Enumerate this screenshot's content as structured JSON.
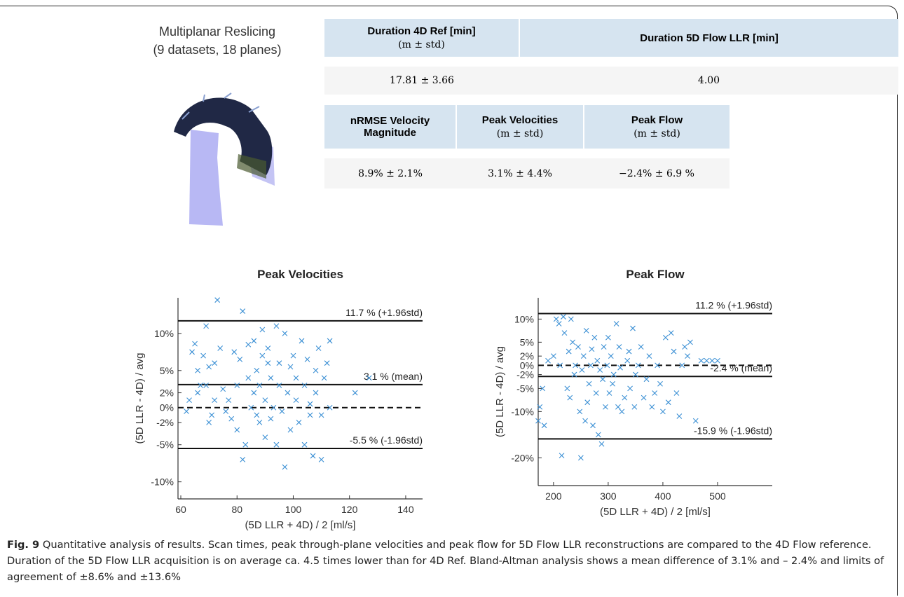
{
  "figure": {
    "reslice": {
      "title": "Multiplanar Reslicing",
      "subtitle": "(9 datasets, 18 planes)"
    },
    "caption": {
      "label": "Fig. 9",
      "text": "Quantitative analysis of results. Scan times, peak through-plane velocities and peak flow for 5D Flow LLR reconstructions are compared to the 4D Flow reference. Duration of the 5D Flow LLR acquisition is on average ca. 4.5 times lower than for 4D Ref. Bland-Altman analysis shows a mean difference of 3.1% and – 2.4% and limits of agreement of ±8.6% and ±13.6%"
    }
  },
  "table1": {
    "header": [
      {
        "title": "Duration 4D Ref [min]",
        "sub": "(m ± std)"
      },
      {
        "title": "Duration 5D Flow LLR [min]"
      }
    ],
    "rows": [
      [
        "17.81 ± 3.66",
        "4.00"
      ]
    ]
  },
  "table2": {
    "header": [
      {
        "title": "nRMSE Velocity Magnitude"
      },
      {
        "title": "Peak Velocities",
        "sub": "(m ± std)"
      },
      {
        "title": "Peak Flow",
        "sub": "(m ± std)"
      }
    ],
    "rows": [
      [
        "8.9% ± 2.1%",
        "3.1% ± 4.4%",
        "−2.4% ± 6.9 %"
      ]
    ]
  },
  "chart_data": [
    {
      "type": "scatter",
      "title": "Peak Velocities",
      "xlabel": "(5D LLR + 4D) / 2 [ml/s]",
      "ylabel": "(5D LLR - 4D) / avg",
      "color": "#3a8fd4",
      "marker": "x",
      "xlim": [
        59,
        146
      ],
      "ylim": [
        -12.3,
        14.8
      ],
      "xticks": [
        60,
        80,
        100,
        120,
        140
      ],
      "yticks": [
        {
          "value": -10,
          "label": "-10%"
        },
        {
          "value": -5,
          "label": "-5%"
        },
        {
          "value": -2,
          "label": "-2%"
        },
        {
          "value": 0,
          "label": "0%"
        },
        {
          "value": 2,
          "label": "2%"
        },
        {
          "value": 5,
          "label": "5%"
        },
        {
          "value": 10,
          "label": "10%"
        }
      ],
      "reference_lines": [
        {
          "value": 11.7,
          "label": "11.7 % (+1.96std)",
          "style": "solid"
        },
        {
          "value": 3.1,
          "label": "3.1 % (mean)",
          "style": "solid"
        },
        {
          "value": 0,
          "style": "dashed"
        },
        {
          "value": -5.5,
          "label": "-5.5 % (-1.96std)",
          "style": "solid"
        }
      ],
      "x": [
        62,
        63,
        64,
        65,
        66,
        66,
        67,
        68,
        69,
        69,
        70,
        70,
        71,
        72,
        72,
        73,
        74,
        75,
        76,
        77,
        78,
        79,
        80,
        80,
        81,
        82,
        82,
        83,
        84,
        84,
        85,
        86,
        86,
        87,
        87,
        88,
        88,
        89,
        89,
        90,
        90,
        91,
        91,
        92,
        92,
        93,
        94,
        94,
        95,
        95,
        96,
        97,
        97,
        98,
        99,
        99,
        100,
        101,
        101,
        102,
        103,
        104,
        104,
        105,
        106,
        106,
        107,
        108,
        108,
        109,
        110,
        110,
        111,
        112,
        113,
        113,
        122,
        127
      ],
      "y": [
        -0.5,
        1,
        7.5,
        8.6,
        5,
        2,
        3,
        7,
        11,
        3,
        -2,
        5.5,
        -1,
        6,
        1,
        14.5,
        8,
        2.5,
        -0.5,
        1,
        -1.5,
        7.5,
        3,
        -3,
        6.5,
        13,
        -7,
        -5,
        4,
        8.5,
        0,
        2,
        9,
        5,
        -1,
        -2,
        3,
        7,
        10.5,
        -4,
        1,
        6,
        8,
        4,
        -1.5,
        0,
        -5,
        11,
        3,
        6,
        -0.5,
        10,
        -8,
        2,
        5.5,
        -3,
        7,
        1,
        4,
        -2,
        9,
        -5,
        3,
        6.5,
        0.5,
        -1,
        -6.5,
        5,
        2,
        8,
        -1,
        -7,
        4,
        6,
        9,
        0,
        2,
        4
      ]
    },
    {
      "type": "scatter",
      "title": "Peak Flow",
      "xlabel": "(5D LLR + 4D) / 2 [ml/s]",
      "ylabel": "(5D LLR - 4D) / avg",
      "color": "#3a8fd4",
      "marker": "x",
      "xlim": [
        172,
        600
      ],
      "ylim": [
        -26,
        14.6
      ],
      "xticks": [
        200,
        300,
        400,
        500
      ],
      "yticks": [
        {
          "value": -20,
          "label": "-20%"
        },
        {
          "value": -10,
          "label": "-10%"
        },
        {
          "value": -5,
          "label": "-5%"
        },
        {
          "value": -2,
          "label": "-2%"
        },
        {
          "value": 0,
          "label": "0%"
        },
        {
          "value": 2,
          "label": "2%"
        },
        {
          "value": 5,
          "label": "5%"
        },
        {
          "value": 10,
          "label": "10%"
        }
      ],
      "reference_lines": [
        {
          "value": 11.2,
          "label": "11.2 % (+1.96std)",
          "style": "solid"
        },
        {
          "value": 0,
          "style": "dashed"
        },
        {
          "value": -2.4,
          "label": "-2.4 % (mean)",
          "style": "solid"
        },
        {
          "value": -15.9,
          "label": "-15.9 % (-1.96std)",
          "style": "solid"
        }
      ],
      "x": [
        172,
        175,
        180,
        183,
        190,
        200,
        205,
        210,
        212,
        215,
        218,
        220,
        225,
        228,
        230,
        232,
        235,
        238,
        240,
        245,
        248,
        250,
        252,
        255,
        258,
        260,
        262,
        265,
        268,
        270,
        272,
        275,
        278,
        280,
        282,
        285,
        288,
        290,
        292,
        295,
        298,
        300,
        302,
        305,
        308,
        310,
        315,
        318,
        320,
        322,
        325,
        330,
        335,
        338,
        340,
        345,
        348,
        350,
        355,
        360,
        365,
        370,
        375,
        380,
        385,
        390,
        395,
        400,
        405,
        410,
        415,
        420,
        425,
        430,
        435,
        440,
        445,
        450,
        460,
        470,
        480,
        490,
        500
      ],
      "y": [
        -12,
        -9,
        -5,
        -13,
        1,
        2,
        10,
        9,
        0,
        -19.5,
        10.5,
        7,
        -5,
        3,
        -7,
        10,
        5,
        -2,
        0,
        4,
        -10,
        -20,
        -1,
        2,
        -12,
        7.5,
        -8,
        -4,
        0,
        3.5,
        -13,
        6,
        -6,
        1,
        -15,
        -1,
        -17,
        -3,
        4,
        -9,
        0,
        6,
        -6,
        2,
        -4,
        -2,
        9,
        -9,
        4,
        -0.5,
        -10,
        -7,
        1,
        3,
        -5,
        8,
        -9,
        -2,
        0,
        4,
        -7,
        -3,
        2,
        -9,
        -6,
        0,
        -4,
        -10,
        6,
        -8,
        7,
        3,
        -6,
        -11,
        0,
        4,
        2,
        5,
        -12,
        1,
        1,
        1,
        1
      ]
    }
  ]
}
